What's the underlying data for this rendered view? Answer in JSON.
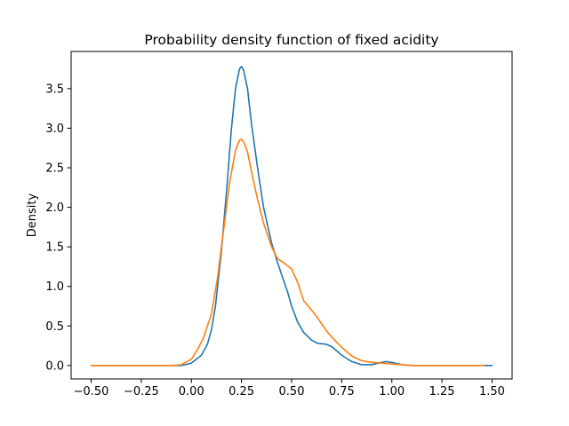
{
  "chart_data": {
    "type": "line",
    "title": "Probability density function of fixed acidity",
    "xlabel": "",
    "ylabel": "Density",
    "xlim": [
      -0.6,
      1.6
    ],
    "ylim": [
      -0.17,
      3.97
    ],
    "xticks": [
      -0.5,
      -0.25,
      0.0,
      0.25,
      0.5,
      0.75,
      1.0,
      1.25,
      1.5
    ],
    "xtick_labels": [
      "−0.50",
      "−0.25",
      "0.00",
      "0.25",
      "0.50",
      "0.75",
      "1.00",
      "1.25",
      "1.50"
    ],
    "yticks": [
      0.0,
      0.5,
      1.0,
      1.5,
      2.0,
      2.5,
      3.0,
      3.5
    ],
    "ytick_labels": [
      "0.0",
      "0.5",
      "1.0",
      "1.5",
      "2.0",
      "2.5",
      "3.0",
      "3.5"
    ],
    "grid": false,
    "legend": false,
    "series": [
      {
        "color": "#1f77b4",
        "x": [
          -0.5,
          -0.3,
          -0.1,
          -0.05,
          0.0,
          0.05,
          0.08,
          0.1,
          0.12,
          0.15,
          0.18,
          0.2,
          0.22,
          0.24,
          0.25,
          0.26,
          0.28,
          0.3,
          0.33,
          0.36,
          0.4,
          0.43,
          0.45,
          0.48,
          0.5,
          0.53,
          0.56,
          0.6,
          0.63,
          0.67,
          0.7,
          0.75,
          0.8,
          0.85,
          0.9,
          0.95,
          0.97,
          1.0,
          1.05,
          1.1,
          1.2,
          1.3,
          1.5
        ],
        "y": [
          0.0,
          0.0,
          0.0,
          0.0,
          0.03,
          0.13,
          0.27,
          0.45,
          0.75,
          1.45,
          2.35,
          3.0,
          3.5,
          3.75,
          3.78,
          3.74,
          3.5,
          3.05,
          2.5,
          2.0,
          1.55,
          1.3,
          1.15,
          0.93,
          0.75,
          0.55,
          0.42,
          0.32,
          0.28,
          0.27,
          0.24,
          0.13,
          0.05,
          0.01,
          0.01,
          0.04,
          0.05,
          0.04,
          0.01,
          0.0,
          0.0,
          0.0,
          0.0
        ]
      },
      {
        "color": "#ff7f0e",
        "x": [
          -0.5,
          -0.3,
          -0.1,
          -0.05,
          0.0,
          0.03,
          0.06,
          0.1,
          0.13,
          0.16,
          0.19,
          0.22,
          0.24,
          0.25,
          0.26,
          0.28,
          0.3,
          0.33,
          0.36,
          0.4,
          0.43,
          0.46,
          0.5,
          0.53,
          0.56,
          0.6,
          0.63,
          0.67,
          0.7,
          0.75,
          0.8,
          0.85,
          0.9,
          0.95,
          1.0,
          1.05,
          1.1,
          1.2,
          1.3,
          1.46
        ],
        "y": [
          0.0,
          0.0,
          0.0,
          0.01,
          0.08,
          0.2,
          0.35,
          0.65,
          1.1,
          1.7,
          2.3,
          2.72,
          2.85,
          2.86,
          2.83,
          2.7,
          2.45,
          2.1,
          1.8,
          1.5,
          1.35,
          1.3,
          1.22,
          1.05,
          0.82,
          0.7,
          0.6,
          0.45,
          0.36,
          0.23,
          0.12,
          0.06,
          0.04,
          0.03,
          0.02,
          0.01,
          0.0,
          0.0,
          0.0,
          0.0
        ]
      }
    ]
  }
}
